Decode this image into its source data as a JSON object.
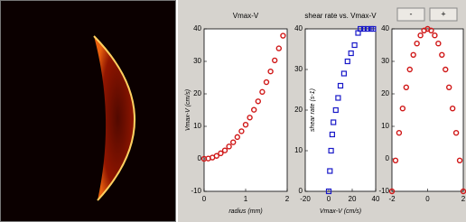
{
  "buttons": [
    "-",
    "+"
  ],
  "chart_data": [
    {
      "type": "scatter",
      "title": "Vmax-V",
      "xlabel": "radius (mm)",
      "ylabel": "Vmax-V (cm/s)",
      "color": "#d01818",
      "marker": "circle",
      "x": [
        0,
        0.1,
        0.2,
        0.3,
        0.4,
        0.5,
        0.6,
        0.7,
        0.8,
        0.9,
        1.0,
        1.1,
        1.2,
        1.3,
        1.4,
        1.5,
        1.6,
        1.7,
        1.8,
        1.9
      ],
      "values": [
        0,
        0.1,
        0.4,
        0.9,
        1.7,
        2.6,
        3.8,
        5.1,
        6.7,
        8.5,
        10.5,
        12.7,
        15.1,
        17.7,
        20.6,
        23.6,
        26.9,
        30.3,
        34.0,
        37.9
      ],
      "xlim": [
        0,
        2
      ],
      "xticks": [
        0,
        1,
        2
      ],
      "ylim": [
        -10,
        40
      ],
      "yticks": [
        -10,
        0,
        10,
        20,
        30,
        40
      ]
    },
    {
      "type": "scatter",
      "title": "shear rate vs. Vmax-V",
      "xlabel": "Vmax-V (cm/s)",
      "ylabel": "shear rate (s-1)",
      "color": "#1818c8",
      "marker": "square",
      "x": [
        0,
        1,
        2,
        3,
        4,
        6,
        8,
        10,
        13,
        16,
        19,
        22,
        25,
        27,
        30,
        33,
        36,
        38
      ],
      "values": [
        0,
        5,
        10,
        14,
        17,
        20,
        23,
        26,
        29,
        32,
        34,
        36,
        39,
        40,
        40,
        40,
        40,
        40
      ],
      "xlim": [
        -20,
        40
      ],
      "xticks": [
        -20,
        0,
        20,
        40
      ],
      "ylim": [
        0,
        40
      ],
      "yticks": [
        0,
        10,
        20,
        30,
        40
      ]
    },
    {
      "type": "scatter",
      "color": "#d01818",
      "marker": "circle",
      "x": [
        -2,
        -1.8,
        -1.6,
        -1.4,
        -1.2,
        -1,
        -0.8,
        -0.6,
        -0.4,
        -0.2,
        0,
        0.2,
        0.4,
        0.6,
        0.8,
        1,
        1.2,
        1.4,
        1.6,
        1.8,
        2
      ],
      "values": [
        -10,
        -0.5,
        8,
        15.5,
        22,
        27.5,
        32,
        35.5,
        38,
        39.5,
        40,
        39.5,
        38,
        35.5,
        32,
        27.5,
        22,
        15.5,
        8,
        -0.5,
        -10
      ],
      "xlim": [
        -2,
        2
      ],
      "xticks": [
        -2,
        0,
        2
      ],
      "ylim": [
        -10,
        40
      ],
      "yticks": [
        -10,
        0,
        10,
        20,
        30,
        40
      ]
    }
  ]
}
